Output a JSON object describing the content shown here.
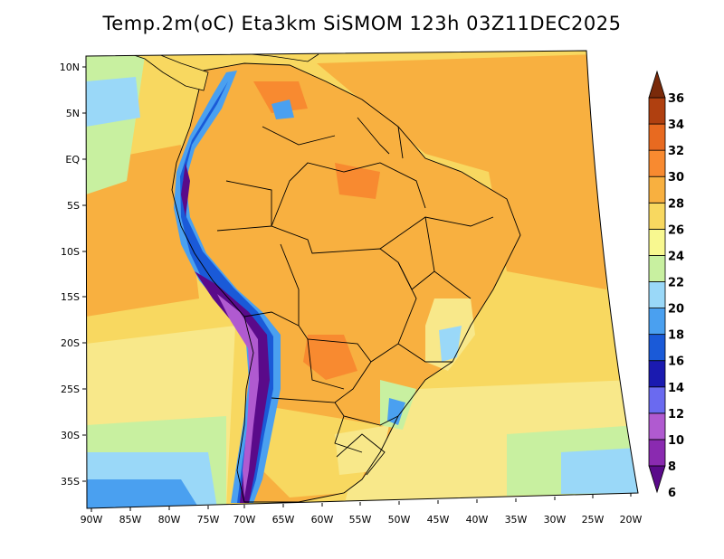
{
  "title": "Temp.2m(oC) Eta3km SiSMOM 123h 03Z11DEC2025",
  "lat_labels": [
    "10N",
    "5N",
    "EQ",
    "5S",
    "10S",
    "15S",
    "20S",
    "25S",
    "30S",
    "35S"
  ],
  "lon_labels": [
    "90W",
    "85W",
    "80W",
    "75W",
    "70W",
    "65W",
    "60W",
    "55W",
    "50W",
    "45W",
    "40W",
    "35W",
    "30W",
    "25W",
    "20W"
  ],
  "colorbar": {
    "labels": [
      "6",
      "8",
      "10",
      "12",
      "14",
      "16",
      "18",
      "20",
      "22",
      "24",
      "26",
      "28",
      "30",
      "32",
      "34",
      "36"
    ],
    "colors": [
      "#5a0a8a",
      "#8a2ab0",
      "#b05ad0",
      "#6a6af0",
      "#1a1ab0",
      "#1a5ad8",
      "#4aa0f0",
      "#9ad8f8",
      "#c8f0a0",
      "#f8f890",
      "#f8d860",
      "#f8b040",
      "#f88a30",
      "#e86a20",
      "#b04010",
      "#7a2a0a"
    ]
  },
  "map_colors": {
    "ocean_warm": "#f8c050",
    "ocean_mild": "#f8e88a",
    "ocean_cool": "#c8f0a0",
    "land_hot": "#f8b040",
    "andes_cold": "#5a0a8a",
    "sea_cold": "#9ad8f8"
  }
}
